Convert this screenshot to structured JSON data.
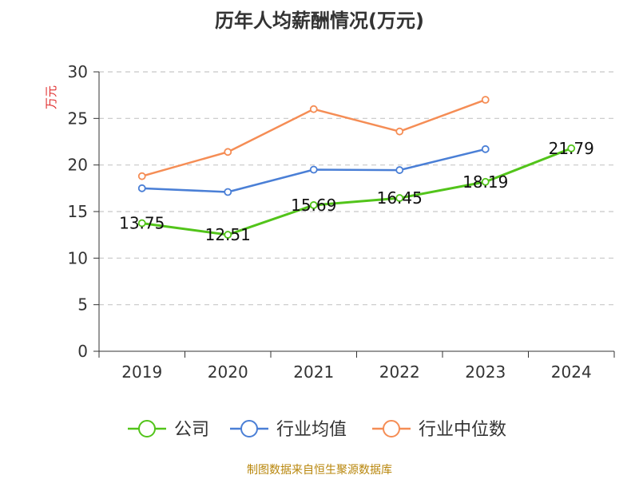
{
  "page": {
    "source_text": "制图数据来自恒生聚源数据库"
  },
  "chart_data": {
    "type": "line",
    "title": "历年人均薪酬情况(万元)",
    "ylabel": "万元",
    "xlabel": "",
    "ylim": [
      0,
      30
    ],
    "yticks": [
      0,
      5,
      10,
      15,
      20,
      25,
      30
    ],
    "categories": [
      "2019",
      "2020",
      "2021",
      "2022",
      "2023",
      "2024"
    ],
    "grid": true,
    "legend_position": "bottom",
    "series": [
      {
        "name": "公司",
        "color": "#52c41a",
        "values": [
          13.75,
          12.51,
          15.69,
          16.45,
          18.19,
          21.79
        ],
        "labels": [
          "13.75",
          "12.51",
          "15.69",
          "16.45",
          "18.19",
          "21.79"
        ]
      },
      {
        "name": "行业均值",
        "color": "#4a7fd6",
        "values": [
          17.5,
          17.1,
          19.5,
          19.45,
          21.7,
          null
        ]
      },
      {
        "name": "行业中位数",
        "color": "#f58d55",
        "values": [
          18.8,
          21.4,
          26.0,
          23.6,
          27.0,
          null
        ]
      }
    ]
  }
}
